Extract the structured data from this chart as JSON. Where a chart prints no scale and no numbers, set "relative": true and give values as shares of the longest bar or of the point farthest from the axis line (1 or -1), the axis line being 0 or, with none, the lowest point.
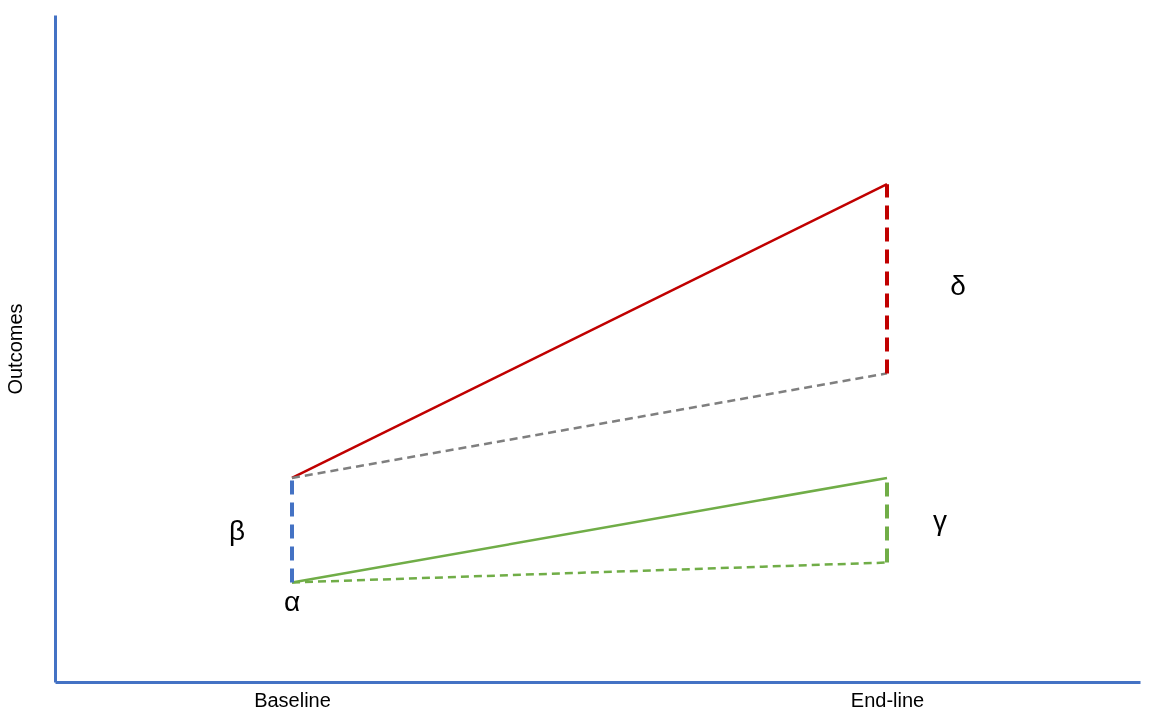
{
  "chart_data": {
    "type": "line",
    "relative": true,
    "ylabel": "Outcomes",
    "categories": [
      "Baseline",
      "End-line"
    ],
    "grid": false,
    "legend": false,
    "marker": "none",
    "series": [
      {
        "color": "#c00000",
        "values": [
          0.41,
          1.0
        ],
        "line_style": "solid"
      },
      {
        "color": "#7f7f7f",
        "values": [
          0.41,
          0.62
        ],
        "line_style": "dashed"
      },
      {
        "color": "#70ad47",
        "values": [
          0.2,
          0.41
        ],
        "line_style": "solid"
      },
      {
        "color": "#70ad47",
        "values": [
          0.2,
          0.24
        ],
        "line_style": "dashed"
      },
      {
        "color": "#4472c4",
        "x": [
          "Baseline",
          "Baseline"
        ],
        "values": [
          0.2,
          0.41
        ],
        "line_style": "dashed"
      },
      {
        "color": "#c00000",
        "x": [
          "End-line",
          "End-line"
        ],
        "values": [
          0.62,
          1.0
        ],
        "line_style": "dashed"
      },
      {
        "color": "#70ad47",
        "x": [
          "End-line",
          "End-line"
        ],
        "values": [
          0.24,
          0.41
        ],
        "line_style": "dashed"
      }
    ],
    "annotations": [
      "α",
      "β",
      "γ",
      "δ"
    ]
  }
}
